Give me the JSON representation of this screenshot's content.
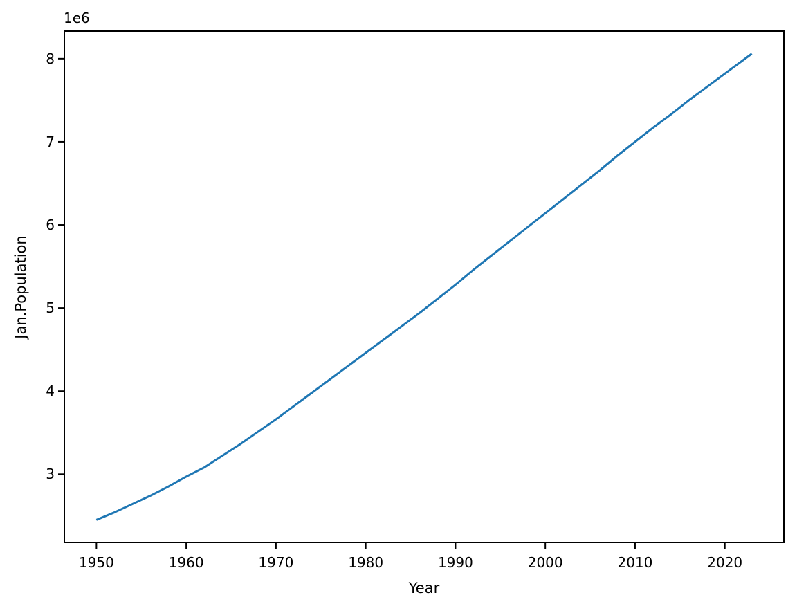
{
  "chart_data": {
    "type": "line",
    "title": "",
    "xlabel": "Year",
    "ylabel": "Jan.Population",
    "offset_text": "1e6",
    "line_color": "#1f77b4",
    "line_width": 3,
    "background_color": "#ffffff",
    "spine_color": "#000000",
    "grid": false,
    "legend": null,
    "xlim": [
      1946.35,
      2026.65
    ],
    "ylim": [
      2170000,
      8340000
    ],
    "x_ticks": [
      1950,
      1960,
      1970,
      1980,
      1990,
      2000,
      2010,
      2020
    ],
    "x_tick_labels": [
      "1950",
      "1960",
      "1970",
      "1980",
      "1990",
      "2000",
      "2010",
      "2020"
    ],
    "y_ticks": [
      3000000,
      4000000,
      5000000,
      6000000,
      7000000,
      8000000
    ],
    "y_tick_labels": [
      "3",
      "4",
      "5",
      "6",
      "7",
      "8"
    ],
    "x": [
      1950,
      1952,
      1954,
      1956,
      1958,
      1960,
      1962,
      1964,
      1966,
      1968,
      1970,
      1972,
      1974,
      1976,
      1978,
      1980,
      1982,
      1984,
      1986,
      1988,
      1990,
      1992,
      1994,
      1996,
      1998,
      2000,
      2002,
      2004,
      2006,
      2008,
      2010,
      2012,
      2014,
      2016,
      2018,
      2020,
      2022,
      2023
    ],
    "y": [
      2450000,
      2540000,
      2640000,
      2740000,
      2850000,
      2970000,
      3080000,
      3220000,
      3360000,
      3510000,
      3660000,
      3820000,
      3980000,
      4140000,
      4300000,
      4460000,
      4620000,
      4780000,
      4940000,
      5110000,
      5280000,
      5460000,
      5630000,
      5800000,
      5970000,
      6140000,
      6310000,
      6480000,
      6650000,
      6830000,
      7000000,
      7170000,
      7330000,
      7500000,
      7660000,
      7820000,
      7980000,
      8060000
    ]
  }
}
